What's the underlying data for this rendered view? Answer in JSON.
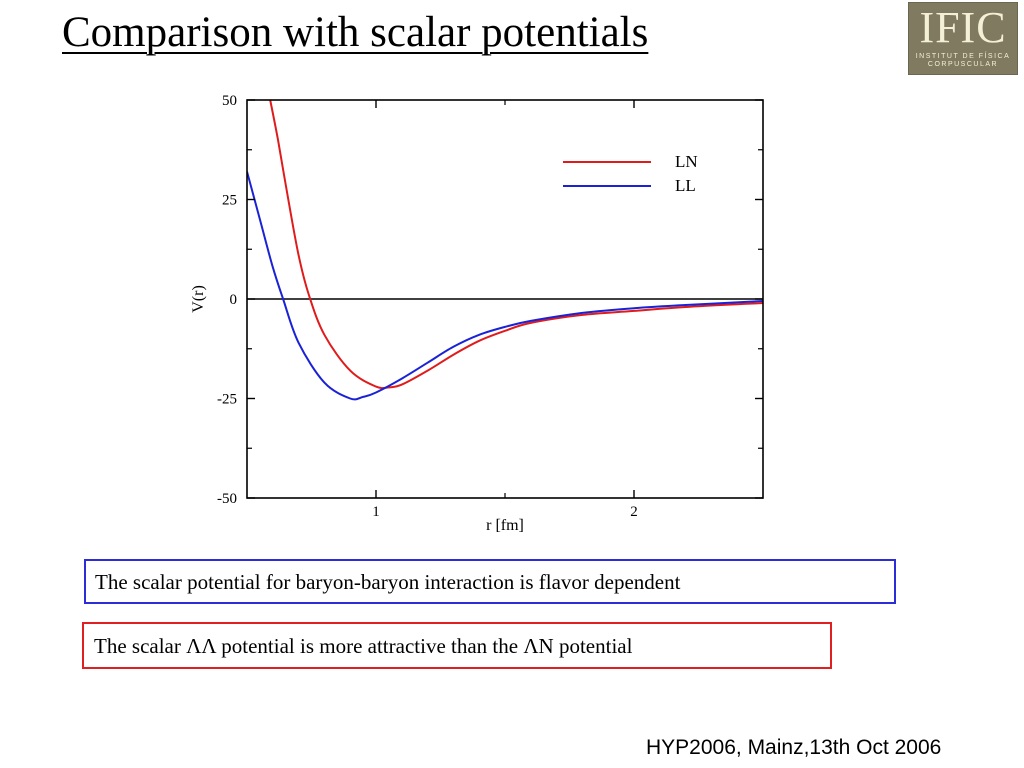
{
  "slide": {
    "title": "Comparison with scalar potentials",
    "logo_main": "IFIC",
    "logo_sub_1": "INSTITUT DE FÍSICA",
    "logo_sub_2": "CORPUSCULAR",
    "statement_1": "The scalar potential for baryon-baryon interaction is flavor dependent",
    "statement_2": "The scalar ΛΛ potential is more attractive than the ΛN potential",
    "footer": "HYP2006, Mainz,13th Oct 2006"
  },
  "colors": {
    "LN": "#e01b1b",
    "LL": "#1b22d6",
    "box_1_border": "#2b2ed8",
    "box_2_border": "#e02020"
  },
  "chart_data": {
    "type": "line",
    "xlabel": "r [fm]",
    "ylabel": "V(r)",
    "xlim": [
      0.5,
      2.5
    ],
    "ylim": [
      -50,
      50
    ],
    "x_ticks": [
      1,
      2
    ],
    "y_ticks": [
      50,
      25,
      0,
      -25,
      -50
    ],
    "zero_line": true,
    "legend_position": "top-right",
    "series": [
      {
        "name": "LN",
        "color": "#e01b1b",
        "points": [
          [
            0.59,
            50
          ],
          [
            0.62,
            40
          ],
          [
            0.66,
            25
          ],
          [
            0.7,
            11
          ],
          [
            0.74,
            1
          ],
          [
            0.8,
            -9
          ],
          [
            0.9,
            -18
          ],
          [
            1.0,
            -22
          ],
          [
            1.05,
            -22.2
          ],
          [
            1.1,
            -21.5
          ],
          [
            1.2,
            -18
          ],
          [
            1.3,
            -14
          ],
          [
            1.4,
            -10.5
          ],
          [
            1.5,
            -8
          ],
          [
            1.6,
            -6
          ],
          [
            1.8,
            -4
          ],
          [
            2.0,
            -3
          ],
          [
            2.2,
            -2
          ],
          [
            2.5,
            -1
          ]
        ]
      },
      {
        "name": "LL",
        "color": "#1b22d6",
        "points": [
          [
            0.5,
            32
          ],
          [
            0.55,
            20
          ],
          [
            0.6,
            8
          ],
          [
            0.64,
            0
          ],
          [
            0.7,
            -11
          ],
          [
            0.8,
            -21
          ],
          [
            0.9,
            -25
          ],
          [
            0.95,
            -24.6
          ],
          [
            1.0,
            -23.5
          ],
          [
            1.1,
            -20
          ],
          [
            1.2,
            -16
          ],
          [
            1.3,
            -12
          ],
          [
            1.4,
            -9
          ],
          [
            1.5,
            -7
          ],
          [
            1.6,
            -5.5
          ],
          [
            1.8,
            -3.5
          ],
          [
            2.0,
            -2.3
          ],
          [
            2.2,
            -1.5
          ],
          [
            2.5,
            -0.5
          ]
        ]
      }
    ]
  }
}
